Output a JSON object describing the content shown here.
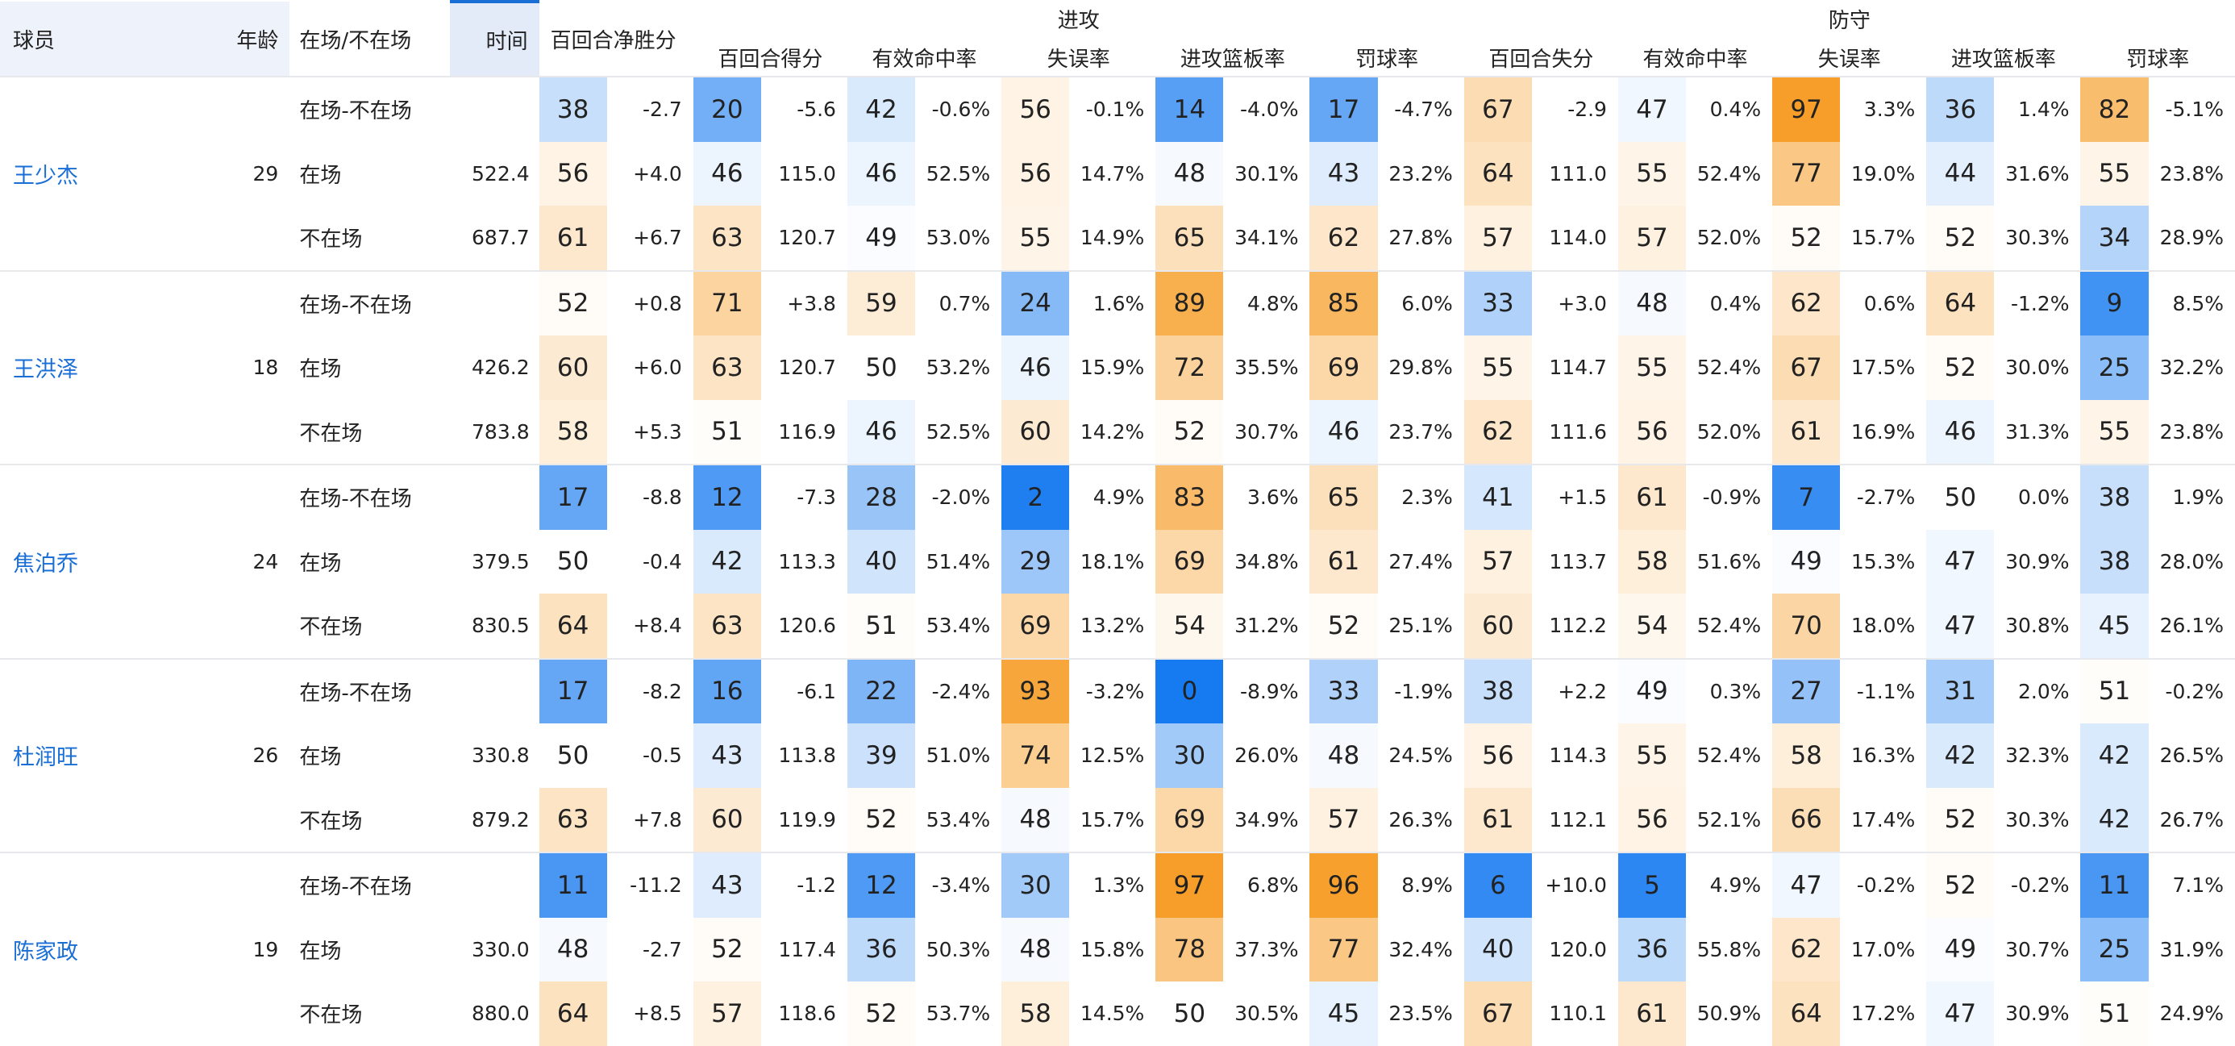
{
  "header": {
    "player": "球员",
    "age": "年龄",
    "status": "在场/不在场",
    "time": "时间",
    "net_rating": "百回合净胜分",
    "offense": "进攻",
    "defense": "防守",
    "offense_cols": [
      "百回合得分",
      "有效命中率",
      "失误率",
      "进攻篮板率",
      "罚球率"
    ],
    "defense_cols": [
      "百回合失分",
      "有效命中率",
      "失误率",
      "进攻篮板率",
      "罚球率"
    ]
  },
  "players": [
    {
      "name": "王少杰",
      "age": 29,
      "rows": [
        {
          "status": "在场-不在场",
          "cells": [
            [
              38,
              "-2.7"
            ],
            [
              20,
              "-5.6"
            ],
            [
              42,
              "-0.6%"
            ],
            [
              56,
              "-0.1%"
            ],
            [
              14,
              "-4.0%"
            ],
            [
              17,
              "-4.7%"
            ],
            [
              67,
              "-2.9"
            ],
            [
              47,
              "0.4%"
            ],
            [
              97,
              "3.3%"
            ],
            [
              36,
              "1.4%"
            ],
            [
              82,
              "-5.1%"
            ]
          ]
        },
        {
          "status": "在场",
          "time": "522.4",
          "cells": [
            [
              56,
              "+4.0"
            ],
            [
              46,
              "115.0"
            ],
            [
              46,
              "52.5%"
            ],
            [
              56,
              "14.7%"
            ],
            [
              48,
              "30.1%"
            ],
            [
              43,
              "23.2%"
            ],
            [
              64,
              "111.0"
            ],
            [
              55,
              "52.4%"
            ],
            [
              77,
              "19.0%"
            ],
            [
              44,
              "31.6%"
            ],
            [
              55,
              "23.8%"
            ]
          ]
        },
        {
          "status": "不在场",
          "time": "687.7",
          "cells": [
            [
              61,
              "+6.7"
            ],
            [
              63,
              "120.7"
            ],
            [
              49,
              "53.0%"
            ],
            [
              55,
              "14.9%"
            ],
            [
              65,
              "34.1%"
            ],
            [
              62,
              "27.8%"
            ],
            [
              57,
              "114.0"
            ],
            [
              57,
              "52.0%"
            ],
            [
              52,
              "15.7%"
            ],
            [
              52,
              "30.3%"
            ],
            [
              34,
              "28.9%"
            ]
          ]
        }
      ]
    },
    {
      "name": "王洪泽",
      "age": 18,
      "rows": [
        {
          "status": "在场-不在场",
          "cells": [
            [
              52,
              "+0.8"
            ],
            [
              71,
              "+3.8"
            ],
            [
              59,
              "0.7%"
            ],
            [
              24,
              "1.6%"
            ],
            [
              89,
              "4.8%"
            ],
            [
              85,
              "6.0%"
            ],
            [
              33,
              "+3.0"
            ],
            [
              48,
              "0.4%"
            ],
            [
              62,
              "0.6%"
            ],
            [
              64,
              "-1.2%"
            ],
            [
              9,
              "8.5%"
            ]
          ]
        },
        {
          "status": "在场",
          "time": "426.2",
          "cells": [
            [
              60,
              "+6.0"
            ],
            [
              63,
              "120.7"
            ],
            [
              50,
              "53.2%"
            ],
            [
              46,
              "15.9%"
            ],
            [
              72,
              "35.5%"
            ],
            [
              69,
              "29.8%"
            ],
            [
              55,
              "114.7"
            ],
            [
              55,
              "52.4%"
            ],
            [
              67,
              "17.5%"
            ],
            [
              52,
              "30.0%"
            ],
            [
              25,
              "32.2%"
            ]
          ]
        },
        {
          "status": "不在场",
          "time": "783.8",
          "cells": [
            [
              58,
              "+5.3"
            ],
            [
              51,
              "116.9"
            ],
            [
              46,
              "52.5%"
            ],
            [
              60,
              "14.2%"
            ],
            [
              52,
              "30.7%"
            ],
            [
              46,
              "23.7%"
            ],
            [
              62,
              "111.6"
            ],
            [
              56,
              "52.0%"
            ],
            [
              61,
              "16.9%"
            ],
            [
              46,
              "31.3%"
            ],
            [
              55,
              "23.8%"
            ]
          ]
        }
      ]
    },
    {
      "name": "焦泊乔",
      "age": 24,
      "rows": [
        {
          "status": "在场-不在场",
          "cells": [
            [
              17,
              "-8.8"
            ],
            [
              12,
              "-7.3"
            ],
            [
              28,
              "-2.0%"
            ],
            [
              2,
              "4.9%"
            ],
            [
              83,
              "3.6%"
            ],
            [
              65,
              "2.3%"
            ],
            [
              41,
              "+1.5"
            ],
            [
              61,
              "-0.9%"
            ],
            [
              7,
              "-2.7%"
            ],
            [
              50,
              "0.0%"
            ],
            [
              38,
              "1.9%"
            ]
          ]
        },
        {
          "status": "在场",
          "time": "379.5",
          "cells": [
            [
              50,
              "-0.4"
            ],
            [
              42,
              "113.3"
            ],
            [
              40,
              "51.4%"
            ],
            [
              29,
              "18.1%"
            ],
            [
              69,
              "34.8%"
            ],
            [
              61,
              "27.4%"
            ],
            [
              57,
              "113.7"
            ],
            [
              58,
              "51.6%"
            ],
            [
              49,
              "15.3%"
            ],
            [
              47,
              "30.9%"
            ],
            [
              38,
              "28.0%"
            ]
          ]
        },
        {
          "status": "不在场",
          "time": "830.5",
          "cells": [
            [
              64,
              "+8.4"
            ],
            [
              63,
              "120.6"
            ],
            [
              51,
              "53.4%"
            ],
            [
              69,
              "13.2%"
            ],
            [
              54,
              "31.2%"
            ],
            [
              52,
              "25.1%"
            ],
            [
              60,
              "112.2"
            ],
            [
              54,
              "52.4%"
            ],
            [
              70,
              "18.0%"
            ],
            [
              47,
              "30.8%"
            ],
            [
              45,
              "26.1%"
            ]
          ]
        }
      ]
    },
    {
      "name": "杜润旺",
      "age": 26,
      "rows": [
        {
          "status": "在场-不在场",
          "cells": [
            [
              17,
              "-8.2"
            ],
            [
              16,
              "-6.1"
            ],
            [
              22,
              "-2.4%"
            ],
            [
              93,
              "-3.2%"
            ],
            [
              0,
              "-8.9%"
            ],
            [
              33,
              "-1.9%"
            ],
            [
              38,
              "+2.2"
            ],
            [
              49,
              "0.3%"
            ],
            [
              27,
              "-1.1%"
            ],
            [
              31,
              "2.0%"
            ],
            [
              51,
              "-0.2%"
            ]
          ]
        },
        {
          "status": "在场",
          "time": "330.8",
          "cells": [
            [
              50,
              "-0.5"
            ],
            [
              43,
              "113.8"
            ],
            [
              39,
              "51.0%"
            ],
            [
              74,
              "12.5%"
            ],
            [
              30,
              "26.0%"
            ],
            [
              48,
              "24.5%"
            ],
            [
              56,
              "114.3"
            ],
            [
              55,
              "52.4%"
            ],
            [
              58,
              "16.3%"
            ],
            [
              42,
              "32.3%"
            ],
            [
              42,
              "26.5%"
            ]
          ]
        },
        {
          "status": "不在场",
          "time": "879.2",
          "cells": [
            [
              63,
              "+7.8"
            ],
            [
              60,
              "119.9"
            ],
            [
              52,
              "53.4%"
            ],
            [
              48,
              "15.7%"
            ],
            [
              69,
              "34.9%"
            ],
            [
              57,
              "26.3%"
            ],
            [
              61,
              "112.1"
            ],
            [
              56,
              "52.1%"
            ],
            [
              66,
              "17.4%"
            ],
            [
              52,
              "30.3%"
            ],
            [
              42,
              "26.7%"
            ]
          ]
        }
      ]
    },
    {
      "name": "陈家政",
      "age": 19,
      "rows": [
        {
          "status": "在场-不在场",
          "cells": [
            [
              11,
              "-11.2"
            ],
            [
              43,
              "-1.2"
            ],
            [
              12,
              "-3.4%"
            ],
            [
              30,
              "1.3%"
            ],
            [
              97,
              "6.8%"
            ],
            [
              96,
              "8.9%"
            ],
            [
              6,
              "+10.0"
            ],
            [
              5,
              "4.9%"
            ],
            [
              47,
              "-0.2%"
            ],
            [
              52,
              "-0.2%"
            ],
            [
              11,
              "7.1%"
            ]
          ]
        },
        {
          "status": "在场",
          "time": "330.0",
          "cells": [
            [
              48,
              "-2.7"
            ],
            [
              52,
              "117.4"
            ],
            [
              36,
              "50.3%"
            ],
            [
              48,
              "15.8%"
            ],
            [
              78,
              "37.3%"
            ],
            [
              77,
              "32.4%"
            ],
            [
              40,
              "120.0"
            ],
            [
              36,
              "55.8%"
            ],
            [
              62,
              "17.0%"
            ],
            [
              49,
              "30.7%"
            ],
            [
              25,
              "31.9%"
            ]
          ]
        },
        {
          "status": "不在场",
          "time": "880.0",
          "cells": [
            [
              64,
              "+8.5"
            ],
            [
              57,
              "118.6"
            ],
            [
              52,
              "53.7%"
            ],
            [
              58,
              "14.5%"
            ],
            [
              50,
              "30.5%"
            ],
            [
              45,
              "23.5%"
            ],
            [
              67,
              "110.1"
            ],
            [
              61,
              "50.9%"
            ],
            [
              64,
              "17.2%"
            ],
            [
              47,
              "30.9%"
            ],
            [
              51,
              "24.9%"
            ]
          ]
        }
      ]
    }
  ]
}
